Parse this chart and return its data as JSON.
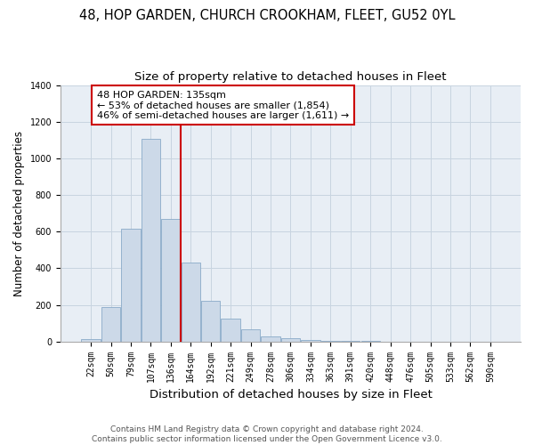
{
  "title": "48, HOP GARDEN, CHURCH CROOKHAM, FLEET, GU52 0YL",
  "subtitle": "Size of property relative to detached houses in Fleet",
  "xlabel": "Distribution of detached houses by size in Fleet",
  "ylabel": "Number of detached properties",
  "bar_labels": [
    "22sqm",
    "50sqm",
    "79sqm",
    "107sqm",
    "136sqm",
    "164sqm",
    "192sqm",
    "221sqm",
    "249sqm",
    "278sqm",
    "306sqm",
    "334sqm",
    "363sqm",
    "391sqm",
    "420sqm",
    "448sqm",
    "476sqm",
    "505sqm",
    "533sqm",
    "562sqm",
    "590sqm"
  ],
  "bar_values": [
    15,
    190,
    615,
    1105,
    670,
    430,
    220,
    125,
    65,
    28,
    20,
    8,
    5,
    3,
    1,
    0,
    0,
    0,
    0,
    0,
    0
  ],
  "bar_color": "#ccd9e8",
  "bar_edge_color": "#8aaac8",
  "vline_color": "#cc0000",
  "annotation_title": "48 HOP GARDEN: 135sqm",
  "annotation_line1": "← 53% of detached houses are smaller (1,854)",
  "annotation_line2": "46% of semi-detached houses are larger (1,611) →",
  "annotation_box_color": "#ffffff",
  "annotation_box_edge": "#cc0000",
  "footnote1": "Contains HM Land Registry data © Crown copyright and database right 2024.",
  "footnote2": "Contains public sector information licensed under the Open Government Licence v3.0.",
  "ylim": [
    0,
    1400
  ],
  "bg_color": "#e8eef5",
  "grid_color": "#c8d4e0",
  "title_fontsize": 10.5,
  "subtitle_fontsize": 9.5,
  "xlabel_fontsize": 9.5,
  "ylabel_fontsize": 8.5,
  "tick_fontsize": 7,
  "annot_fontsize": 8,
  "footnote_fontsize": 6.5
}
